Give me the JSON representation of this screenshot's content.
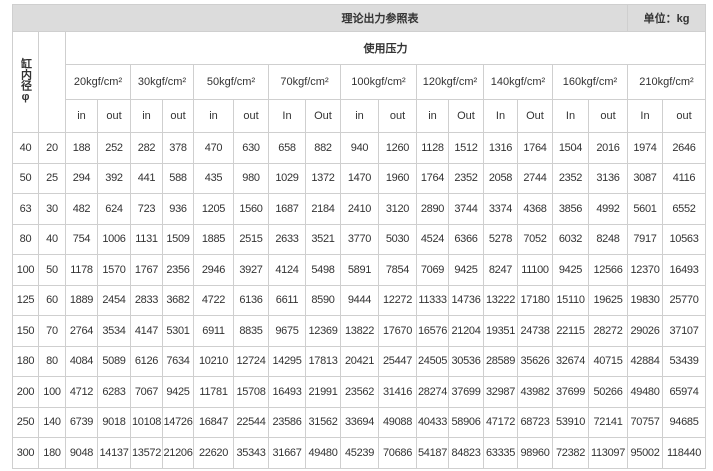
{
  "title": "理论出力参照表",
  "unit": "单位：kg",
  "bore_label": "缸内径φ",
  "pressure_group_label": "使用压力",
  "pressures": [
    "20kgf/cm²",
    "30kgf/cm²",
    "50kgf/cm²",
    "70kgf/cm²",
    "100kgf/cm²",
    "120kgf/cm²",
    "140kgf/cm²",
    "160kgf/cm²",
    "210kgf/cm²"
  ],
  "sub_labels": [
    "in",
    "out",
    "in",
    "out",
    "in",
    "out",
    "In",
    "Out",
    "in",
    "out",
    "in",
    "Out",
    "In",
    "Out",
    "In",
    "out",
    "In",
    "out"
  ],
  "rows": [
    [
      "40",
      "20",
      "188",
      "252",
      "282",
      "378",
      "470",
      "630",
      "658",
      "882",
      "940",
      "1260",
      "1128",
      "1512",
      "1316",
      "1764",
      "1504",
      "2016",
      "1974",
      "2646"
    ],
    [
      "50",
      "25",
      "294",
      "392",
      "441",
      "588",
      "435",
      "980",
      "1029",
      "1372",
      "1470",
      "1960",
      "1764",
      "2352",
      "2058",
      "2744",
      "2352",
      "3136",
      "3087",
      "4116"
    ],
    [
      "63",
      "30",
      "482",
      "624",
      "723",
      "936",
      "1205",
      "1560",
      "1687",
      "2184",
      "2410",
      "3120",
      "2890",
      "3744",
      "3374",
      "4368",
      "3856",
      "4992",
      "5601",
      "6552"
    ],
    [
      "80",
      "40",
      "754",
      "1006",
      "1131",
      "1509",
      "1885",
      "2515",
      "2633",
      "3521",
      "3770",
      "5030",
      "4524",
      "6366",
      "5278",
      "7052",
      "6032",
      "8248",
      "7917",
      "10563"
    ],
    [
      "100",
      "50",
      "1178",
      "1570",
      "1767",
      "2356",
      "2946",
      "3927",
      "4124",
      "5498",
      "5891",
      "7854",
      "7069",
      "9425",
      "8247",
      "11100",
      "9425",
      "12566",
      "12370",
      "16493"
    ],
    [
      "125",
      "60",
      "1889",
      "2454",
      "2833",
      "3682",
      "4722",
      "6136",
      "6611",
      "8590",
      "9444",
      "12272",
      "11333",
      "14736",
      "13222",
      "17180",
      "15110",
      "19625",
      "19830",
      "25770"
    ],
    [
      "150",
      "70",
      "2764",
      "3534",
      "4147",
      "5301",
      "6911",
      "8835",
      "9675",
      "12369",
      "13822",
      "17670",
      "16576",
      "21204",
      "19351",
      "24738",
      "22115",
      "28272",
      "29026",
      "37107"
    ],
    [
      "180",
      "80",
      "4084",
      "5089",
      "6126",
      "7634",
      "10210",
      "12724",
      "14295",
      "17813",
      "20421",
      "25447",
      "24505",
      "30536",
      "28589",
      "35626",
      "32674",
      "40715",
      "42884",
      "53439"
    ],
    [
      "200",
      "100",
      "4712",
      "6283",
      "7067",
      "9425",
      "11781",
      "15708",
      "16493",
      "21991",
      "23562",
      "31416",
      "28274",
      "37699",
      "32987",
      "43982",
      "37699",
      "50266",
      "49480",
      "65974"
    ],
    [
      "250",
      "140",
      "6739",
      "9018",
      "10108",
      "14726",
      "16847",
      "22544",
      "23586",
      "31562",
      "33694",
      "49088",
      "40433",
      "58906",
      "47172",
      "68723",
      "53910",
      "72141",
      "70757",
      "94685"
    ],
    [
      "300",
      "180",
      "9048",
      "14137",
      "13572",
      "21206",
      "22620",
      "35343",
      "31667",
      "49480",
      "45239",
      "70686",
      "54187",
      "84823",
      "63335",
      "98960",
      "72382",
      "113097",
      "95002",
      "118440"
    ]
  ]
}
